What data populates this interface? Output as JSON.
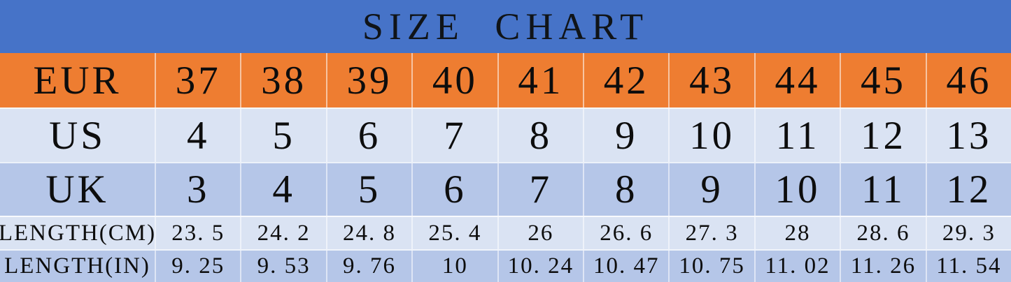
{
  "title": "SIZE CHART",
  "colors": {
    "title_bg": "#4673C8",
    "eur_row_bg": "#EE7D31",
    "light_row_bg": "#DAE3F3",
    "medium_row_bg": "#B5C6E8",
    "text": "#0D0D0D"
  },
  "table": {
    "rows": [
      {
        "label": "EUR",
        "values": [
          "37",
          "38",
          "39",
          "40",
          "41",
          "42",
          "43",
          "44",
          "45",
          "46"
        ]
      },
      {
        "label": "US",
        "values": [
          "4",
          "5",
          "6",
          "7",
          "8",
          "9",
          "10",
          "11",
          "12",
          "13"
        ]
      },
      {
        "label": "UK",
        "values": [
          "3",
          "4",
          "5",
          "6",
          "7",
          "8",
          "9",
          "10",
          "11",
          "12"
        ]
      },
      {
        "label": "LENGTH(CM)",
        "values": [
          "23. 5",
          "24. 2",
          "24. 8",
          "25. 4",
          "26",
          "26. 6",
          "27. 3",
          "28",
          "28. 6",
          "29. 3"
        ]
      },
      {
        "label": "LENGTH(IN)",
        "values": [
          "9. 25",
          "9. 53",
          "9. 76",
          "10",
          "10. 24",
          "10. 47",
          "10. 75",
          "11. 02",
          "11. 26",
          "11. 54"
        ]
      }
    ]
  },
  "chart_data": {
    "type": "table",
    "title": "SIZE CHART",
    "row_headers": [
      "EUR",
      "US",
      "UK",
      "LENGTH(CM)",
      "LENGTH(IN)"
    ],
    "rows": [
      [
        37,
        38,
        39,
        40,
        41,
        42,
        43,
        44,
        45,
        46
      ],
      [
        4,
        5,
        6,
        7,
        8,
        9,
        10,
        11,
        12,
        13
      ],
      [
        3,
        4,
        5,
        6,
        7,
        8,
        9,
        10,
        11,
        12
      ],
      [
        23.5,
        24.2,
        24.8,
        25.4,
        26,
        26.6,
        27.3,
        28,
        28.6,
        29.3
      ],
      [
        9.25,
        9.53,
        9.76,
        10,
        10.24,
        10.47,
        10.75,
        11.02,
        11.26,
        11.54
      ]
    ]
  }
}
